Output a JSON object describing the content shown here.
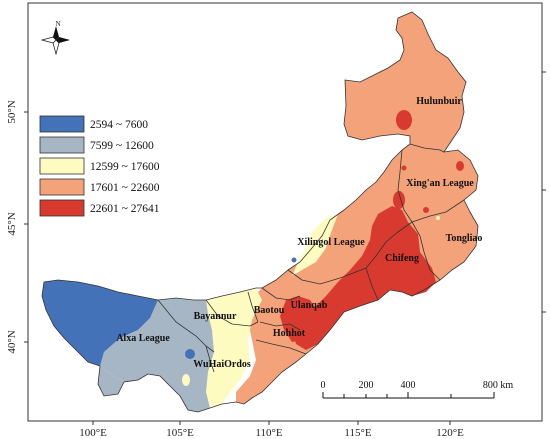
{
  "map": {
    "north_label": "N",
    "lon_ticks": [
      "100°E",
      "105°E",
      "110°E",
      "115°E",
      "120°E"
    ],
    "lat_ticks": [
      "50°N",
      "45°N",
      "40°N"
    ],
    "legend": [
      {
        "label": "2594 ~ 7600",
        "color": "#4472b8"
      },
      {
        "label": "7599 ~ 12600",
        "color": "#a6b6c4"
      },
      {
        "label": "12599 ~ 17600",
        "color": "#fdfbc0"
      },
      {
        "label": "17601 ~ 22600",
        "color": "#f4a27a"
      },
      {
        "label": "22601 ~ 27641",
        "color": "#d93a2f"
      }
    ],
    "regions": [
      {
        "name": "Hulunbuir"
      },
      {
        "name": "Xing'an League"
      },
      {
        "name": "Xilingol League"
      },
      {
        "name": "Tongliao"
      },
      {
        "name": "Chifeng"
      },
      {
        "name": "Ulanqab"
      },
      {
        "name": "Baotou"
      },
      {
        "name": "Hohhot"
      },
      {
        "name": "Bayannur"
      },
      {
        "name": "Alxa League"
      },
      {
        "name": "WuHaiOrdos"
      }
    ],
    "scale": {
      "labels": [
        "0",
        "200",
        "400",
        "800 km"
      ]
    }
  }
}
